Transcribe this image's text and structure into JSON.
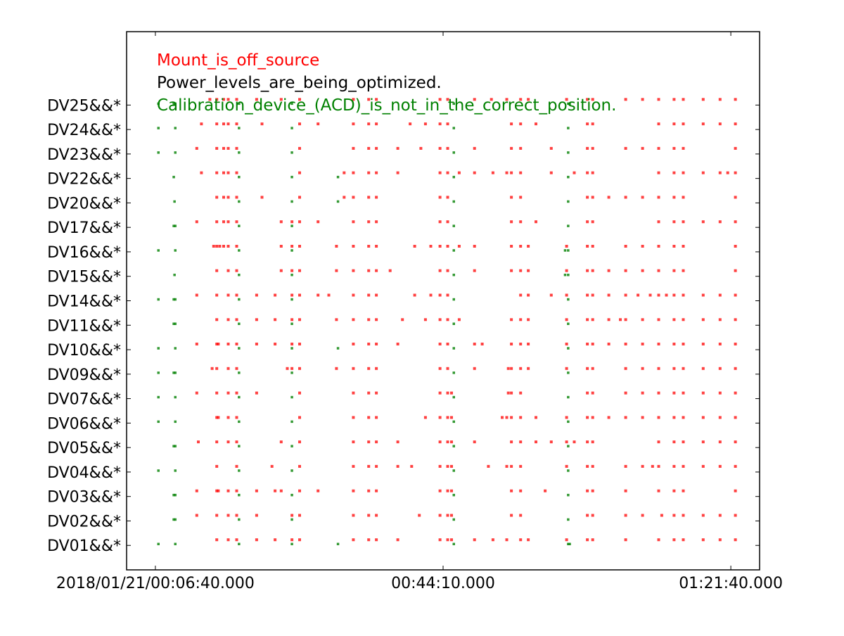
{
  "chart_data": {
    "type": "scatter",
    "title": "",
    "xlabel": "",
    "ylabel": "",
    "x_ticks": [
      "2018/01/21/00:06:40.000",
      "00:44:10.000",
      "01:21:40.000"
    ],
    "x_tick_values_min": [
      0,
      37.5,
      75
    ],
    "xlim_min": [
      -3.75,
      78.75
    ],
    "y_categories": [
      "DV01&&*",
      "DV02&&*",
      "DV03&&*",
      "DV04&&*",
      "DV05&&*",
      "DV06&&*",
      "DV07&&*",
      "DV09&&*",
      "DV10&&*",
      "DV11&&*",
      "DV14&&*",
      "DV15&&*",
      "DV16&&*",
      "DV17&&*",
      "DV20&&*",
      "DV22&&*",
      "DV23&&*",
      "DV24&&*",
      "DV25&&*"
    ],
    "ylim": [
      -1,
      21
    ],
    "legend": {
      "placement": "top-left",
      "entries": [
        {
          "label": "Mount_is_off_source",
          "color": "#ff0000"
        },
        {
          "label": "Power_levels_are_being_optimized.",
          "color": "#000000"
        },
        {
          "label": "Calibration_device_(ACD)_is_not_in_the_correct_position.",
          "color": "#008000"
        }
      ]
    },
    "series": [
      {
        "name": "Mount_is_off_source",
        "color": "#ff0000",
        "x_min_by_row": {
          "DV25&&*": [
            7.1,
            8.0,
            8.9,
            9.5,
            10.6,
            13.2,
            16.4,
            18.8,
            25.8,
            27.8,
            28.8,
            37.1,
            38.1,
            41.6,
            43.8,
            45.8,
            47.6,
            48.6,
            53.6,
            56.3,
            57.0,
            61.3,
            63.5,
            65.6,
            67.6,
            68.8,
            71.4,
            73.6,
            75.6
          ],
          "DV24&&*": [
            6.0,
            8.0,
            8.9,
            9.5,
            10.6,
            13.9,
            18.8,
            21.2,
            25.8,
            27.8,
            28.8,
            33.2,
            35.2,
            37.1,
            38.1,
            46.4,
            47.6,
            49.6,
            56.3,
            57.0,
            65.6,
            67.6,
            68.8,
            71.4,
            73.6,
            75.6
          ],
          "DV23&&*": [
            5.4,
            8.0,
            8.9,
            9.5,
            10.6,
            18.8,
            25.8,
            27.8,
            28.8,
            31.6,
            34.6,
            37.1,
            38.1,
            41.6,
            46.4,
            47.6,
            51.6,
            56.3,
            57.0,
            61.3,
            63.5,
            65.6,
            67.6,
            68.8,
            75.6
          ],
          "DV22&&*": [
            6.0,
            8.0,
            8.9,
            9.5,
            10.6,
            18.8,
            24.6,
            25.8,
            27.8,
            28.8,
            31.6,
            37.1,
            38.1,
            39.6,
            41.6,
            44.0,
            45.8,
            46.4,
            47.6,
            51.6,
            54.6,
            56.3,
            57.0,
            65.6,
            67.6,
            68.8,
            71.4,
            73.6,
            74.6,
            75.6
          ],
          "DV20&&*": [
            8.0,
            8.9,
            9.5,
            10.6,
            13.9,
            18.8,
            24.6,
            25.8,
            27.8,
            28.8,
            37.1,
            38.1,
            46.4,
            47.6,
            56.3,
            57.0,
            59.1,
            61.3,
            63.5,
            65.6,
            67.6,
            68.8,
            75.6
          ],
          "DV17&&*": [
            5.4,
            8.0,
            8.9,
            9.5,
            10.6,
            16.4,
            17.8,
            18.8,
            21.2,
            25.8,
            27.8,
            28.8,
            37.1,
            38.1,
            46.4,
            47.6,
            49.6,
            56.3,
            57.0,
            65.6,
            67.6,
            68.8,
            71.4,
            73.6,
            75.6
          ],
          "DV16&&*": [
            7.6,
            8.0,
            8.4,
            8.9,
            9.5,
            10.6,
            16.4,
            17.8,
            18.8,
            23.6,
            25.8,
            27.8,
            28.8,
            33.8,
            35.9,
            37.1,
            38.1,
            39.6,
            41.6,
            46.4,
            47.6,
            48.6,
            53.6,
            56.3,
            57.0,
            61.3,
            63.5,
            65.6,
            67.6,
            68.8,
            75.6
          ],
          "DV15&&*": [
            8.0,
            9.5,
            10.6,
            16.4,
            17.8,
            18.8,
            23.6,
            25.8,
            27.8,
            28.8,
            30.6,
            37.1,
            38.1,
            41.6,
            46.4,
            47.6,
            48.6,
            53.6,
            56.3,
            57.0,
            59.1,
            61.3,
            63.5,
            65.6,
            67.6,
            68.8,
            75.6
          ],
          "DV14&&*": [
            5.4,
            8.0,
            9.5,
            10.6,
            13.2,
            15.6,
            17.8,
            18.8,
            21.2,
            22.6,
            25.8,
            27.8,
            28.8,
            33.8,
            35.9,
            37.1,
            38.1,
            47.6,
            48.6,
            51.6,
            53.6,
            56.3,
            57.0,
            59.1,
            61.3,
            62.9,
            64.5,
            65.6,
            66.6,
            67.6,
            68.8,
            71.4,
            73.6,
            75.6
          ],
          "DV11&&*": [
            8.0,
            9.5,
            10.6,
            13.2,
            15.6,
            17.8,
            18.8,
            23.6,
            25.8,
            27.8,
            28.8,
            32.2,
            35.2,
            37.1,
            38.1,
            39.6,
            46.4,
            47.6,
            48.6,
            53.6,
            56.3,
            57.0,
            59.1,
            60.6,
            61.3,
            63.5,
            65.6,
            67.6,
            68.8,
            71.4,
            73.6,
            75.6
          ],
          "DV10&&*": [
            5.4,
            8.0,
            8.2,
            9.5,
            10.6,
            13.2,
            15.6,
            17.8,
            18.8,
            25.8,
            27.8,
            28.8,
            31.6,
            37.1,
            38.1,
            41.6,
            42.6,
            46.4,
            47.6,
            48.6,
            53.6,
            56.3,
            57.0,
            59.1,
            61.3,
            63.5,
            65.6,
            67.6,
            68.8,
            71.4,
            73.6,
            75.6
          ],
          "DV09&&*": [
            7.4,
            8.0,
            9.5,
            10.6,
            17.2,
            17.8,
            18.8,
            23.6,
            25.8,
            27.8,
            28.8,
            37.1,
            38.1,
            41.6,
            46.0,
            46.4,
            47.6,
            48.6,
            53.6,
            56.3,
            57.0,
            61.3,
            63.5,
            65.6,
            67.6,
            68.8,
            71.4,
            73.6,
            75.6
          ],
          "DV07&&*": [
            5.4,
            8.0,
            9.5,
            10.6,
            13.2,
            18.8,
            25.8,
            27.8,
            28.8,
            37.1,
            38.1,
            38.6,
            46.0,
            46.4,
            47.6,
            56.3,
            57.0,
            61.3,
            63.5,
            65.6,
            67.6,
            68.8,
            71.4,
            73.6,
            75.6
          ],
          "DV06&&*": [
            8.0,
            8.2,
            9.5,
            10.6,
            18.8,
            25.8,
            27.8,
            28.8,
            35.2,
            37.1,
            38.1,
            38.6,
            45.2,
            45.8,
            46.4,
            47.6,
            49.6,
            53.6,
            56.3,
            57.0,
            59.1,
            61.3,
            63.5,
            65.6,
            67.6,
            68.8,
            71.4,
            73.6,
            75.6
          ],
          "DV05&&*": [
            5.6,
            8.0,
            9.5,
            10.6,
            16.4,
            18.8,
            25.8,
            27.8,
            28.8,
            31.6,
            37.1,
            38.1,
            38.6,
            41.6,
            46.4,
            47.6,
            49.6,
            51.6,
            53.6,
            54.6,
            56.3,
            57.0,
            65.6,
            67.6,
            68.8,
            71.4,
            73.6,
            75.6
          ],
          "DV04&&*": [
            8.0,
            10.6,
            15.2,
            18.8,
            25.8,
            27.8,
            28.8,
            31.6,
            33.4,
            37.1,
            38.1,
            38.6,
            43.4,
            45.8,
            46.4,
            47.6,
            53.6,
            56.3,
            57.0,
            61.3,
            63.5,
            64.8,
            65.6,
            67.6,
            68.8,
            71.4,
            73.6,
            75.6
          ],
          "DV03&&*": [
            5.4,
            8.0,
            8.2,
            9.5,
            10.6,
            13.2,
            15.6,
            16.4,
            18.8,
            21.2,
            25.8,
            27.8,
            28.8,
            37.1,
            38.1,
            38.6,
            46.4,
            47.6,
            50.8,
            56.3,
            57.0,
            61.3,
            65.6,
            67.6,
            68.8,
            75.6
          ],
          "DV02&&*": [
            5.4,
            8.0,
            9.5,
            10.6,
            13.2,
            17.8,
            18.8,
            25.8,
            27.8,
            28.8,
            34.4,
            37.1,
            38.1,
            38.6,
            46.4,
            47.6,
            56.3,
            57.0,
            61.3,
            63.5,
            66.0,
            67.6,
            68.8,
            71.4,
            73.6,
            75.6
          ],
          "DV01&&*": [
            8.0,
            9.5,
            10.6,
            13.2,
            15.6,
            17.8,
            18.8,
            25.8,
            27.8,
            28.8,
            31.6,
            37.1,
            38.1,
            38.6,
            41.6,
            44.0,
            45.8,
            47.6,
            48.6,
            53.6,
            56.3,
            57.0,
            61.3,
            65.6,
            67.6,
            68.8,
            71.4,
            73.6,
            75.6
          ]
        }
      },
      {
        "name": "Calibration_device_(ACD)_is_not_in_the_correct_position.",
        "color": "#008000",
        "x_min_by_row": {
          "DV25&&*": [
            0.4,
            2.4,
            2.6,
            10.9,
            17.8,
            38.9,
            53.8,
            54.0
          ],
          "DV24&&*": [
            0.4,
            2.6,
            10.9,
            17.8,
            38.9,
            53.8
          ],
          "DV23&&*": [
            0.4,
            2.6,
            10.9,
            17.8,
            38.9,
            53.8
          ],
          "DV22&&*": [
            2.4,
            10.9,
            17.8,
            23.8,
            38.9,
            53.8
          ],
          "DV20&&*": [
            2.5,
            10.9,
            17.8,
            23.8,
            38.9,
            53.8
          ],
          "DV17&&*": [
            2.4,
            2.6,
            10.9,
            17.8,
            38.9,
            53.8
          ],
          "DV16&&*": [
            0.4,
            2.6,
            10.9,
            17.8,
            38.9,
            53.4,
            53.8
          ],
          "DV15&&*": [
            2.5,
            10.9,
            17.8,
            38.9,
            53.4,
            53.8
          ],
          "DV14&&*": [
            0.4,
            2.4,
            2.6,
            10.9,
            17.8,
            38.9,
            53.8
          ],
          "DV11&&*": [
            2.4,
            2.6,
            10.9,
            17.8,
            38.9,
            53.8
          ],
          "DV10&&*": [
            0.4,
            2.6,
            10.9,
            17.8,
            23.8,
            38.9,
            53.8
          ],
          "DV09&&*": [
            0.4,
            2.4,
            2.6,
            10.9,
            17.8,
            38.9,
            53.8
          ],
          "DV07&&*": [
            0.4,
            2.6,
            10.9,
            17.8,
            38.9,
            53.8
          ],
          "DV06&&*": [
            0.4,
            2.6,
            10.9,
            17.8,
            38.9,
            53.8
          ],
          "DV05&&*": [
            2.4,
            2.6,
            10.9,
            17.8,
            38.9,
            53.8
          ],
          "DV04&&*": [
            0.4,
            2.6,
            10.9,
            17.8,
            38.9,
            53.8
          ],
          "DV03&&*": [
            2.4,
            2.6,
            10.9,
            17.8,
            38.9,
            53.8
          ],
          "DV02&&*": [
            2.4,
            2.6,
            10.9,
            17.8,
            38.9,
            53.8
          ],
          "DV01&&*": [
            0.4,
            2.6,
            10.9,
            17.8,
            23.8,
            38.9,
            53.8,
            54.0
          ]
        }
      }
    ]
  }
}
